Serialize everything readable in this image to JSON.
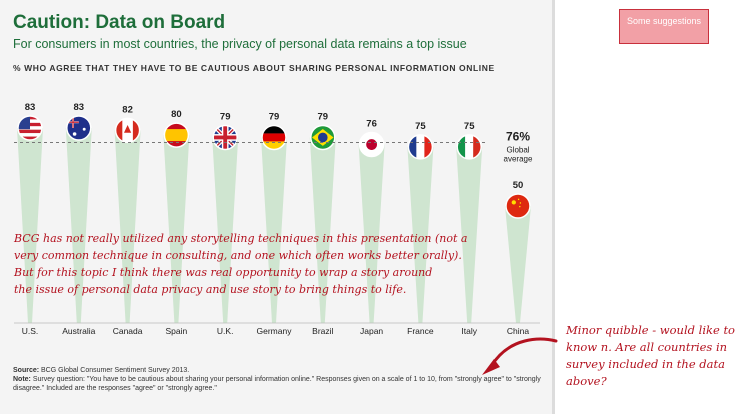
{
  "header": {
    "title": "Caution: Data on Board",
    "subtitle": "For consumers in most countries, the privacy of personal data remains a top issue",
    "chart_heading": "% WHO AGREE THAT THEY HAVE TO BE CAUTIOUS ABOUT SHARING PERSONAL INFORMATION ONLINE"
  },
  "chart_data": {
    "type": "bar",
    "title": "% WHO AGREE THAT THEY HAVE TO BE CAUTIOUS ABOUT SHARING PERSONAL INFORMATION ONLINE",
    "categories": [
      "U.S.",
      "Australia",
      "Canada",
      "Spain",
      "U.K.",
      "Germany",
      "Brazil",
      "Japan",
      "France",
      "Italy",
      "China"
    ],
    "values": [
      83,
      83,
      82,
      80,
      79,
      79,
      79,
      76,
      75,
      75,
      50
    ],
    "value_labels": [
      "83",
      "83",
      "82",
      "80",
      "79",
      "79",
      "79",
      "76",
      "75",
      "75",
      "50"
    ],
    "reference_line": {
      "value": 76,
      "label_value": "76%",
      "label_lines": [
        "Global",
        "average"
      ]
    },
    "xlabel": "",
    "ylabel": ""
  },
  "colors": {
    "title_green": "#1e6e3a",
    "bar_green": "#cfe5d0",
    "annotation_red": "#b3121f",
    "button_fill": "#f2a0a6"
  },
  "flag_icons": [
    "us-flag-icon",
    "australia-flag-icon",
    "canada-flag-icon",
    "spain-flag-icon",
    "uk-flag-icon",
    "germany-flag-icon",
    "brazil-flag-icon",
    "japan-flag-icon",
    "france-flag-icon",
    "italy-flag-icon",
    "china-flag-icon"
  ],
  "annotation": {
    "lines": [
      "BCG has not really utilized any storytelling techniques in this presentation (not a",
      "very common technique in consulting, and one which often works better orally).",
      "But for this topic I think there was real opportunity to wrap a story around",
      "the issue of personal data privacy and use story to bring things to life."
    ]
  },
  "source": {
    "source_label": "Source:",
    "source_text": " BCG Global Consumer Sentiment Survey 2013.",
    "note_label": "Note:",
    "note_text": " Survey question: \"You have to be cautious about sharing your personal information online.\" Responses given on a scale of 1 to 10, from \"strongly agree\" to \"strongly disagree.\" Included are the responses \"agree\" or \"strongly agree.\""
  },
  "suggestions_button": {
    "label": "Some suggestions"
  },
  "side_note": {
    "lines": [
      "Minor quibble - would like to",
      "know n. Are all countries in",
      "survey included in the data",
      "above?"
    ]
  }
}
